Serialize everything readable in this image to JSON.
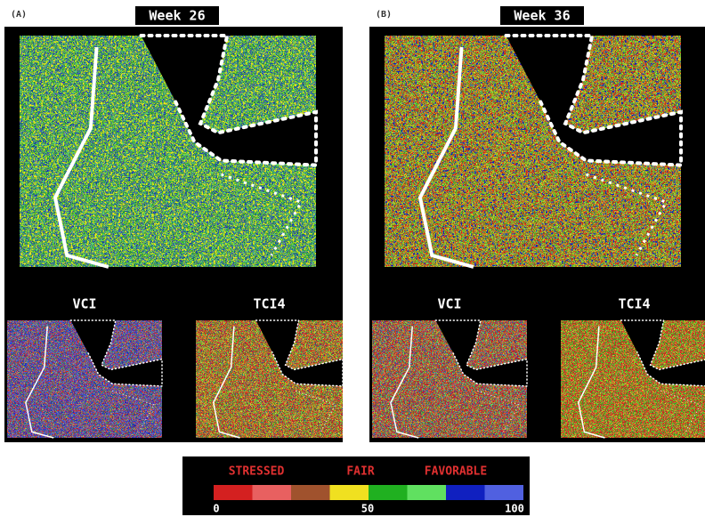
{
  "panels": [
    {
      "label": "(A)",
      "week": "Week 26",
      "insets": [
        "VCI",
        "TCI4"
      ]
    },
    {
      "label": "(B)",
      "week": "Week 36",
      "insets": [
        "VCI",
        "TCI4"
      ]
    }
  ],
  "legend": {
    "categories": [
      "STRESSED",
      "FAIR",
      "FAVORABLE"
    ],
    "ticks": [
      0,
      50,
      100
    ]
  }
}
